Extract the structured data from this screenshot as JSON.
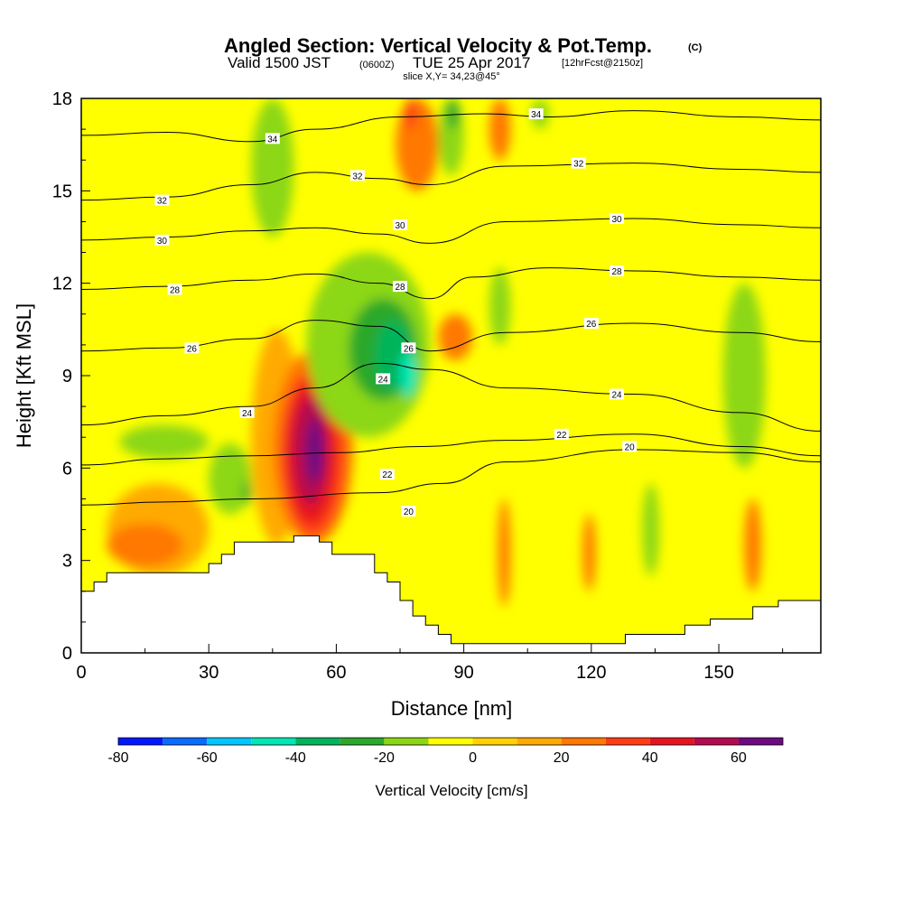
{
  "title": {
    "main": "Angled Section: Vertical Velocity & Pot.Temp.",
    "main_unit": "(C)",
    "valid_prefix": "Valid 1500 JST",
    "valid_z": "(0600Z)",
    "valid_date": "TUE 25 Apr 2017",
    "forecast": "[12hrFcst@2150z]",
    "slice": "slice X,Y= 34,23@45°"
  },
  "chart_data": {
    "type": "heatmap",
    "xlabel": "Distance [nm]",
    "ylabel": "Height [Kft MSL]",
    "xlim": [
      0,
      174
    ],
    "ylim": [
      0,
      18
    ],
    "xticks": [
      0,
      30,
      60,
      90,
      120,
      150
    ],
    "yticks": [
      0,
      3,
      6,
      9,
      12,
      15,
      18
    ],
    "colorbar": {
      "label": "Vertical Velocity [cm/s]",
      "ticks": [
        -80,
        -60,
        -40,
        -20,
        0,
        20,
        40,
        60
      ],
      "levels": [
        -80,
        -70,
        -60,
        -50,
        -40,
        -30,
        -20,
        -10,
        0,
        10,
        20,
        30,
        40,
        50,
        60,
        70
      ],
      "colors": [
        "#0018ff",
        "#0a6cff",
        "#00c8ff",
        "#00e6b4",
        "#00b45a",
        "#2ca82c",
        "#8cd714",
        "#ffff00",
        "#ffd200",
        "#ffaa00",
        "#ff7800",
        "#ff3c14",
        "#e6141e",
        "#b40a50",
        "#6e0a82"
      ]
    },
    "terrain": [
      [
        0,
        2
      ],
      [
        3,
        2
      ],
      [
        3,
        2.3
      ],
      [
        6,
        2.3
      ],
      [
        6,
        2.6
      ],
      [
        30,
        2.6
      ],
      [
        30,
        2.9
      ],
      [
        33,
        2.9
      ],
      [
        33,
        3.2
      ],
      [
        36,
        3.2
      ],
      [
        36,
        3.6
      ],
      [
        50,
        3.6
      ],
      [
        50,
        3.8
      ],
      [
        56,
        3.8
      ],
      [
        56,
        3.6
      ],
      [
        59,
        3.6
      ],
      [
        59,
        3.2
      ],
      [
        69,
        3.2
      ],
      [
        69,
        2.6
      ],
      [
        72,
        2.6
      ],
      [
        72,
        2.3
      ],
      [
        75,
        2.3
      ],
      [
        75,
        1.7
      ],
      [
        78,
        1.7
      ],
      [
        78,
        1.2
      ],
      [
        81,
        1.2
      ],
      [
        81,
        0.9
      ],
      [
        84,
        0.9
      ],
      [
        84,
        0.6
      ],
      [
        87,
        0.6
      ],
      [
        87,
        0.3
      ],
      [
        128,
        0.3
      ],
      [
        128,
        0.6
      ],
      [
        142,
        0.6
      ],
      [
        142,
        0.9
      ],
      [
        148,
        0.9
      ],
      [
        148,
        1.1
      ],
      [
        158,
        1.1
      ],
      [
        158,
        1.5
      ],
      [
        164,
        1.5
      ],
      [
        164,
        1.7
      ],
      [
        174,
        1.7
      ]
    ],
    "field_cells": [
      {
        "x": [
          40,
          52
        ],
        "y": [
          3.5,
          10.5
        ],
        "v": 10
      },
      {
        "x": [
          45,
          64
        ],
        "y": [
          3.5,
          9.8
        ],
        "v": 20
      },
      {
        "x": [
          47,
          62
        ],
        "y": [
          3.8,
          9.2
        ],
        "v": 30
      },
      {
        "x": [
          48,
          60
        ],
        "y": [
          4.2,
          8.8
        ],
        "v": 40
      },
      {
        "x": [
          50,
          58
        ],
        "y": [
          4.8,
          8.3
        ],
        "v": 50
      },
      {
        "x": [
          53,
          57
        ],
        "y": [
          5.5,
          7.6
        ],
        "v": 65
      },
      {
        "x": [
          9,
          30
        ],
        "y": [
          6.3,
          7.4
        ],
        "v": -15
      },
      {
        "x": [
          30,
          40
        ],
        "y": [
          4.5,
          6.8
        ],
        "v": -15
      },
      {
        "x": [
          38,
          40
        ],
        "y": [
          4.8,
          5.6
        ],
        "v": -25
      },
      {
        "x": [
          53,
          82
        ],
        "y": [
          7,
          13
        ],
        "v": -15
      },
      {
        "x": [
          63,
          79
        ],
        "y": [
          8.2,
          11.5
        ],
        "v": -30
      },
      {
        "x": [
          69,
          78
        ],
        "y": [
          8.5,
          10.8
        ],
        "v": -40
      },
      {
        "x": [
          75,
          79
        ],
        "y": [
          8.3,
          9.8
        ],
        "v": -50
      },
      {
        "x": [
          40,
          50
        ],
        "y": [
          13.5,
          18
        ],
        "v": -15
      },
      {
        "x": [
          84,
          90
        ],
        "y": [
          15.5,
          18
        ],
        "v": -15
      },
      {
        "x": [
          86,
          89
        ],
        "y": [
          17,
          18
        ],
        "v": -25
      },
      {
        "x": [
          96,
          101
        ],
        "y": [
          10,
          12.5
        ],
        "v": -15
      },
      {
        "x": [
          106,
          110
        ],
        "y": [
          17,
          18
        ],
        "v": -15
      },
      {
        "x": [
          132,
          136
        ],
        "y": [
          2.5,
          5.5
        ],
        "v": -15
      },
      {
        "x": [
          151,
          161
        ],
        "y": [
          6,
          12
        ],
        "v": -15
      },
      {
        "x": [
          6,
          30
        ],
        "y": [
          2.5,
          5.5
        ],
        "v": 10
      },
      {
        "x": [
          6,
          24
        ],
        "y": [
          2.8,
          4.2
        ],
        "v": 20
      },
      {
        "x": [
          74,
          84
        ],
        "y": [
          15,
          18
        ],
        "v": 20
      },
      {
        "x": [
          76,
          79
        ],
        "y": [
          17,
          18
        ],
        "v": 30
      },
      {
        "x": [
          96,
          101
        ],
        "y": [
          16,
          18
        ],
        "v": 20
      },
      {
        "x": [
          84,
          92
        ],
        "y": [
          9.5,
          11
        ],
        "v": 20
      },
      {
        "x": [
          98,
          101
        ],
        "y": [
          1.5,
          5
        ],
        "v": 20
      },
      {
        "x": [
          118,
          121
        ],
        "y": [
          2,
          4.5
        ],
        "v": 20
      },
      {
        "x": [
          156,
          160
        ],
        "y": [
          2,
          5
        ],
        "v": 20
      }
    ],
    "theta_contours": [
      {
        "label": "20",
        "points": [
          [
            0,
            4.8
          ],
          [
            20,
            4.9
          ],
          [
            40,
            5
          ],
          [
            70,
            5.2
          ],
          [
            85,
            5.5
          ],
          [
            100,
            6.2
          ],
          [
            130,
            6.6
          ],
          [
            155,
            6.5
          ],
          [
            174,
            6.2
          ]
        ]
      },
      {
        "label": "22",
        "points": [
          [
            0,
            6.1
          ],
          [
            20,
            6.3
          ],
          [
            40,
            6.4
          ],
          [
            60,
            6.5
          ],
          [
            80,
            6.7
          ],
          [
            100,
            6.9
          ],
          [
            130,
            7.1
          ],
          [
            155,
            6.7
          ],
          [
            174,
            6.4
          ]
        ]
      },
      {
        "label": "24",
        "points": [
          [
            0,
            7.4
          ],
          [
            20,
            7.7
          ],
          [
            40,
            8.0
          ],
          [
            55,
            8.6
          ],
          [
            70,
            9.4
          ],
          [
            82,
            9.2
          ],
          [
            100,
            8.6
          ],
          [
            130,
            8.4
          ],
          [
            155,
            7.8
          ],
          [
            174,
            7.2
          ]
        ]
      },
      {
        "label": "26",
        "points": [
          [
            0,
            9.8
          ],
          [
            20,
            9.9
          ],
          [
            40,
            10.2
          ],
          [
            55,
            10.8
          ],
          [
            70,
            10.6
          ],
          [
            82,
            9.8
          ],
          [
            100,
            10.4
          ],
          [
            130,
            10.7
          ],
          [
            155,
            10.4
          ],
          [
            174,
            10.1
          ]
        ]
      },
      {
        "label": "28",
        "points": [
          [
            0,
            11.8
          ],
          [
            20,
            11.9
          ],
          [
            40,
            12.1
          ],
          [
            55,
            12.3
          ],
          [
            70,
            12.0
          ],
          [
            82,
            11.5
          ],
          [
            92,
            12.2
          ],
          [
            110,
            12.5
          ],
          [
            130,
            12.4
          ],
          [
            155,
            12.2
          ],
          [
            174,
            12.1
          ]
        ]
      },
      {
        "label": "30",
        "points": [
          [
            0,
            13.4
          ],
          [
            20,
            13.5
          ],
          [
            40,
            13.7
          ],
          [
            55,
            13.8
          ],
          [
            70,
            13.6
          ],
          [
            82,
            13.3
          ],
          [
            100,
            14.0
          ],
          [
            130,
            14.1
          ],
          [
            155,
            13.9
          ],
          [
            174,
            13.8
          ]
        ]
      },
      {
        "label": "32",
        "points": [
          [
            0,
            14.7
          ],
          [
            20,
            14.8
          ],
          [
            40,
            15.2
          ],
          [
            55,
            15.6
          ],
          [
            70,
            15.4
          ],
          [
            82,
            15.2
          ],
          [
            100,
            15.8
          ],
          [
            130,
            15.9
          ],
          [
            155,
            15.7
          ],
          [
            174,
            15.6
          ]
        ]
      },
      {
        "label": "34",
        "points": [
          [
            0,
            16.8
          ],
          [
            20,
            16.9
          ],
          [
            40,
            16.6
          ],
          [
            55,
            17.0
          ],
          [
            75,
            17.4
          ],
          [
            95,
            17.5
          ],
          [
            110,
            17.4
          ],
          [
            130,
            17.6
          ],
          [
            155,
            17.4
          ],
          [
            174,
            17.3
          ]
        ]
      }
    ],
    "contour_labels": [
      {
        "text": "34",
        "x": 45,
        "y": 16.7
      },
      {
        "text": "32",
        "x": 19,
        "y": 14.7
      },
      {
        "text": "32",
        "x": 65,
        "y": 15.5
      },
      {
        "text": "34",
        "x": 107,
        "y": 17.5
      },
      {
        "text": "32",
        "x": 117,
        "y": 15.9
      },
      {
        "text": "30",
        "x": 19,
        "y": 13.4
      },
      {
        "text": "30",
        "x": 75,
        "y": 13.9
      },
      {
        "text": "30",
        "x": 126,
        "y": 14.1
      },
      {
        "text": "28",
        "x": 22,
        "y": 11.8
      },
      {
        "text": "28",
        "x": 75,
        "y": 11.9
      },
      {
        "text": "28",
        "x": 126,
        "y": 12.4
      },
      {
        "text": "26",
        "x": 26,
        "y": 9.9
      },
      {
        "text": "26",
        "x": 77,
        "y": 9.9
      },
      {
        "text": "26",
        "x": 120,
        "y": 10.7
      },
      {
        "text": "24",
        "x": 39,
        "y": 7.8
      },
      {
        "text": "24",
        "x": 71,
        "y": 8.9
      },
      {
        "text": "24",
        "x": 126,
        "y": 8.4
      },
      {
        "text": "22",
        "x": 72,
        "y": 5.8
      },
      {
        "text": "22",
        "x": 113,
        "y": 7.1
      },
      {
        "text": "20",
        "x": 77,
        "y": 4.6
      },
      {
        "text": "20",
        "x": 129,
        "y": 6.7
      }
    ]
  }
}
